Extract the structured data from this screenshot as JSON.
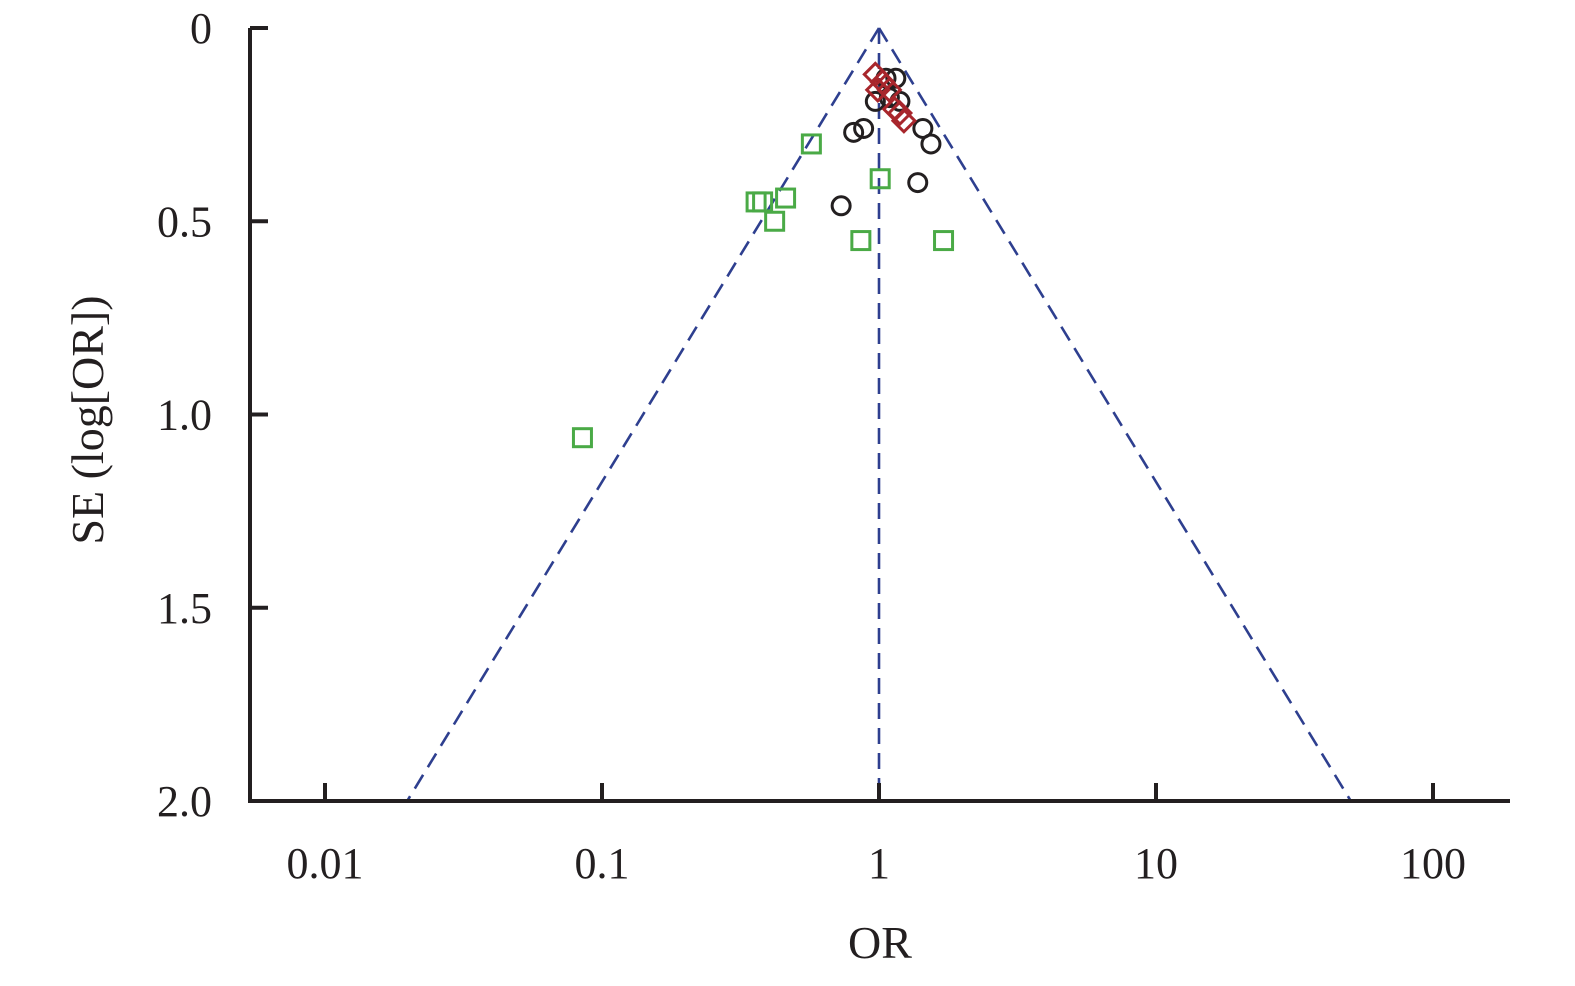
{
  "chart_data": {
    "type": "scatter",
    "subtype": "funnel plot",
    "title": "",
    "xlabel": "OR",
    "ylabel": "SE (log[OR])",
    "x_scale": "log",
    "xlim": [
      0.006,
      180
    ],
    "x_ticks": [
      0.01,
      0.1,
      1,
      10,
      100
    ],
    "x_tick_labels": [
      "0.01",
      "0.1",
      "1",
      "10",
      "100"
    ],
    "ylim": [
      0,
      2.0
    ],
    "y_inverted": true,
    "y_ticks": [
      0,
      0.5,
      1.0,
      1.5,
      2.0
    ],
    "y_tick_labels": [
      "0",
      "0.5",
      "1.0",
      "1.5",
      "2.0"
    ],
    "grid": false,
    "legend": "none",
    "pooled_or": 1.0,
    "funnel_limits": {
      "apex": [
        1.0,
        0
      ],
      "lower_left": [
        0.0198,
        2.0
      ],
      "upper_right": [
        50.5,
        2.0
      ],
      "line_color": "#2e3f8f",
      "line_style": "dashed"
    },
    "series": [
      {
        "marker": "circle",
        "color": "#231f20",
        "points": [
          {
            "x": 1.06,
            "y": 0.13
          },
          {
            "x": 1.15,
            "y": 0.13
          },
          {
            "x": 0.97,
            "y": 0.19
          },
          {
            "x": 1.09,
            "y": 0.18
          },
          {
            "x": 1.19,
            "y": 0.19
          },
          {
            "x": 0.81,
            "y": 0.27
          },
          {
            "x": 0.88,
            "y": 0.26
          },
          {
            "x": 1.44,
            "y": 0.26
          },
          {
            "x": 1.54,
            "y": 0.3
          },
          {
            "x": 1.38,
            "y": 0.4
          },
          {
            "x": 0.73,
            "y": 0.46
          }
        ]
      },
      {
        "marker": "diamond",
        "color": "#a8262c",
        "points": [
          {
            "x": 0.97,
            "y": 0.12
          },
          {
            "x": 1.03,
            "y": 0.14
          },
          {
            "x": 0.99,
            "y": 0.16
          },
          {
            "x": 1.09,
            "y": 0.16
          },
          {
            "x": 1.14,
            "y": 0.21
          },
          {
            "x": 1.19,
            "y": 0.22
          },
          {
            "x": 1.23,
            "y": 0.24
          }
        ]
      },
      {
        "marker": "square",
        "color": "#4aaa46",
        "points": [
          {
            "x": 0.57,
            "y": 0.3
          },
          {
            "x": 1.01,
            "y": 0.39
          },
          {
            "x": 0.46,
            "y": 0.44
          },
          {
            "x": 0.36,
            "y": 0.45
          },
          {
            "x": 0.38,
            "y": 0.45
          },
          {
            "x": 0.42,
            "y": 0.5
          },
          {
            "x": 0.86,
            "y": 0.55
          },
          {
            "x": 1.71,
            "y": 0.55
          },
          {
            "x": 0.085,
            "y": 1.06
          }
        ]
      }
    ]
  }
}
